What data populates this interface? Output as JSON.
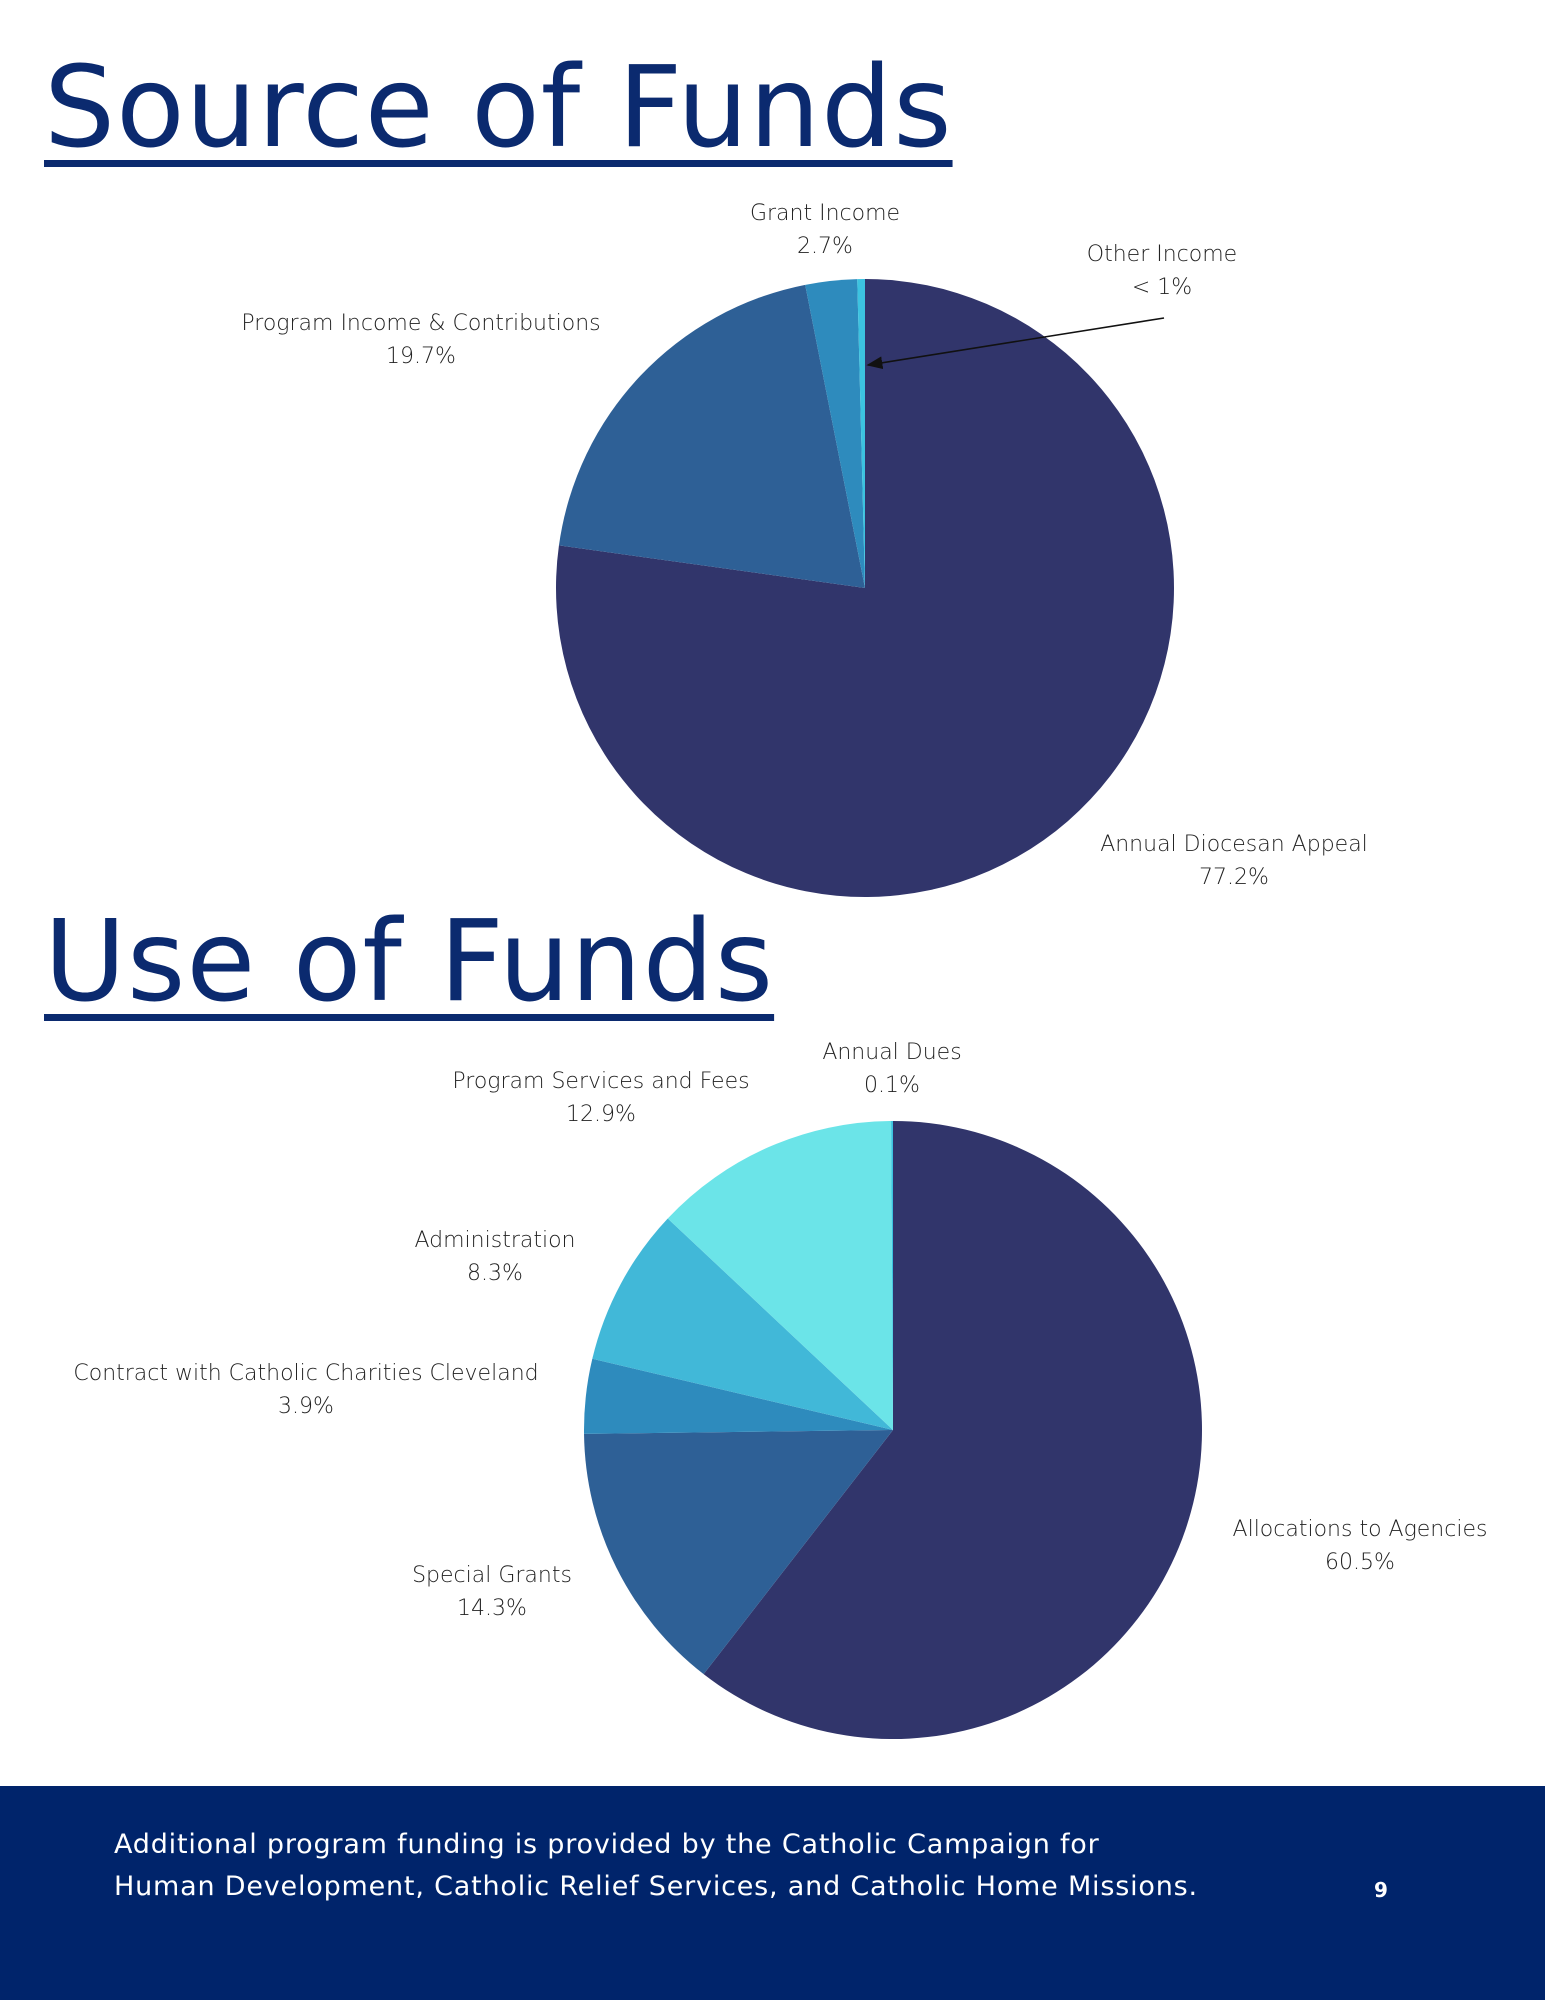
{
  "chart_data": [
    {
      "type": "pie",
      "title": "Source of Funds",
      "categories": [
        "Annual Diocesan Appeal",
        "Program Income & Contributions",
        "Grant Income",
        "Other Income"
      ],
      "values": [
        77.2,
        19.7,
        2.7,
        0.4
      ],
      "value_labels": [
        "77.2%",
        "19.7%",
        "2.7%",
        "< 1%"
      ],
      "colors": [
        "#31356b",
        "#2e6096",
        "#2e8bbd",
        "#3cc3e0"
      ]
    },
    {
      "type": "pie",
      "title": "Use of Funds",
      "categories": [
        "Allocations to Agencies",
        "Special Grants",
        "Contract with Catholic Charities Cleveland",
        "Administration",
        "Program Services and Fees",
        "Annual Dues"
      ],
      "values": [
        60.5,
        14.3,
        3.9,
        8.3,
        12.9,
        0.1
      ],
      "value_labels": [
        "60.5%",
        "14.3%",
        "3.9%",
        "8.3%",
        "12.9%",
        "0.1%"
      ],
      "colors": [
        "#31356b",
        "#2e6096",
        "#2e8bbd",
        "#41b8d8",
        "#6be4e8",
        "#3cc3e0"
      ]
    }
  ],
  "footer": {
    "text": "Additional program funding is provided by the Catholic Campaign for Human Development, Catholic Relief Services, and Catholic Home Missions.",
    "page_number": 9
  }
}
